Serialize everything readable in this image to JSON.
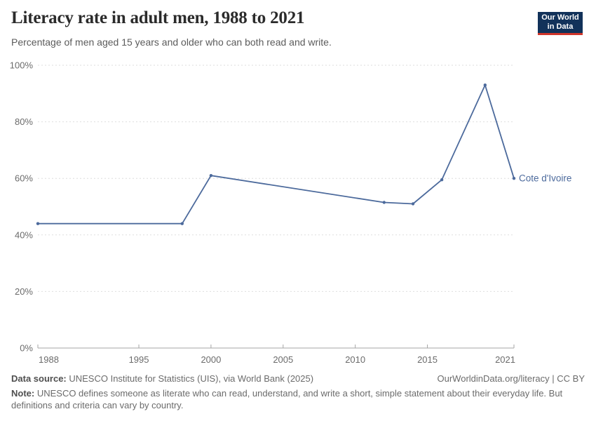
{
  "header": {
    "title": "Literacy rate in adult men, 1988 to 2021",
    "subtitle": "Percentage of men aged 15 years and older who can both read and write.",
    "logo": {
      "line1": "Our World",
      "line2": "in Data"
    }
  },
  "chart_data": {
    "type": "line",
    "title": "Literacy rate in adult men, 1988 to 2021",
    "xlabel": "",
    "ylabel": "",
    "xlim": [
      1988,
      2021
    ],
    "ylim": [
      0,
      100
    ],
    "x_ticks": [
      1988,
      1995,
      2000,
      2005,
      2010,
      2015,
      2021
    ],
    "y_ticks": [
      0,
      20,
      40,
      60,
      80,
      100
    ],
    "y_tick_suffix": "%",
    "grid": "horizontal-dashed",
    "legend_position": "end-of-line-label",
    "x": [
      1988,
      1998,
      2000,
      2012,
      2014,
      2016,
      2019,
      2021
    ],
    "series": [
      {
        "name": "Cote d'Ivoire",
        "values": [
          44,
          44,
          61,
          51.5,
          51,
          59.5,
          93,
          60
        ]
      }
    ]
  },
  "footer": {
    "datasource_label": "Data source:",
    "datasource_text": " UNESCO Institute for Statistics (UIS), via World Bank (2025)",
    "link_text": "OurWorldinData.org/literacy | CC BY",
    "note_label": "Note:",
    "note_text": " UNESCO defines someone as literate who can read, understand, and write a short, simple statement about their everyday life. But definitions and criteria can vary by country."
  },
  "colors": {
    "line": "#4c6a9c",
    "grid": "#dedede",
    "axis": "#a5a5a5",
    "tick_text": "#6b6b6b",
    "title": "#2b2b2b",
    "subtitle": "#5b5b5b",
    "footer_text": "#6b6b6b",
    "logo_bg": "#12325a",
    "logo_accent": "#d0352a"
  }
}
